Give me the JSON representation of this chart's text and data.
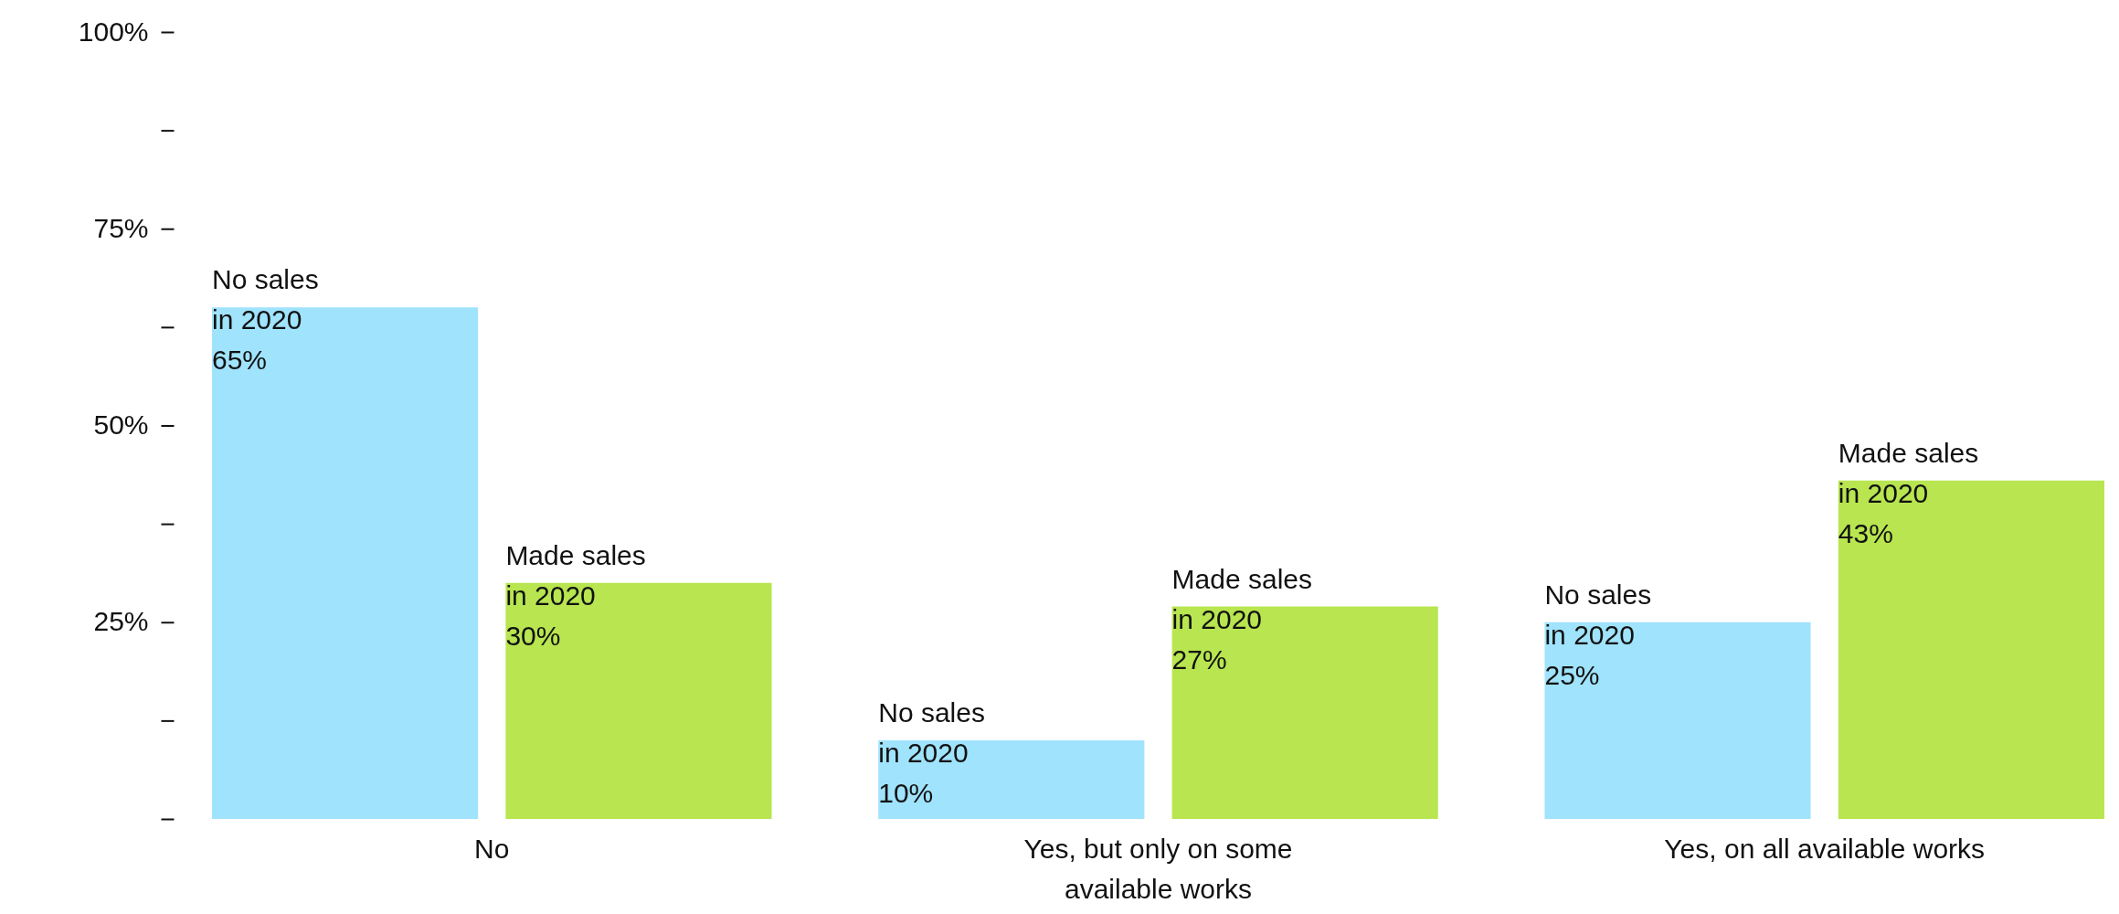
{
  "chart_data": {
    "type": "bar",
    "categories": [
      "No",
      "Yes, but only on some available works",
      "Yes, on all available works"
    ],
    "series": [
      {
        "name": "No sales in 2020",
        "color": "#a0e3fc",
        "values": [
          65,
          10,
          25
        ],
        "value_labels": [
          "65%",
          "10%",
          "25%"
        ]
      },
      {
        "name": "Made sales in 2020",
        "color": "#b8e550",
        "values": [
          30,
          27,
          43
        ],
        "value_labels": [
          "30%",
          "27%",
          "43%"
        ]
      }
    ],
    "ylim": [
      0,
      100
    ],
    "yticks": [
      {
        "value": 0,
        "label": null
      },
      {
        "value": 12.5,
        "label": null
      },
      {
        "value": 25,
        "label": "25%"
      },
      {
        "value": 37.5,
        "label": null
      },
      {
        "value": 50,
        "label": "50%"
      },
      {
        "value": 62.5,
        "label": null
      },
      {
        "value": 75,
        "label": "75%"
      },
      {
        "value": 87.5,
        "label": null
      },
      {
        "value": 100,
        "label": "100%"
      }
    ],
    "grid": false,
    "legend": false
  }
}
